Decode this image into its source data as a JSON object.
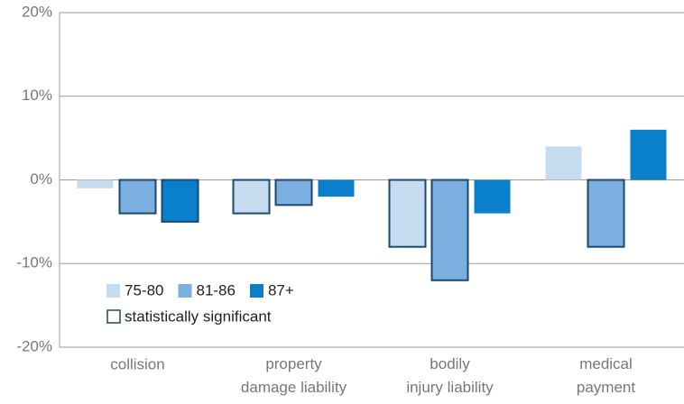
{
  "chart_data": {
    "type": "bar",
    "categories": [
      "collision",
      "property damage liability",
      "bodily injury liability",
      "medical payment"
    ],
    "series": [
      {
        "name": "75-80",
        "color": "#c6dbf0",
        "values": [
          -1,
          -4,
          -8,
          4
        ],
        "significant": [
          false,
          true,
          true,
          false
        ]
      },
      {
        "name": "81-86",
        "color": "#7bafdf",
        "values": [
          -4,
          -3,
          -12,
          -8
        ],
        "significant": [
          true,
          true,
          true,
          true
        ]
      },
      {
        "name": "87+",
        "color": "#0a7fcc",
        "values": [
          -5,
          -2,
          -4,
          6
        ],
        "significant": [
          true,
          false,
          false,
          false
        ]
      }
    ],
    "significance_label": "statistically significant",
    "significance_color": "#1b4a6e",
    "ylim": [
      -20,
      20
    ],
    "yticks": [
      {
        "value": -20,
        "label": "-20%"
      },
      {
        "value": -10,
        "label": "-10%"
      },
      {
        "value": 0,
        "label": "0%"
      },
      {
        "value": 10,
        "label": "10%"
      },
      {
        "value": 20,
        "label": "20%"
      }
    ],
    "grid": true
  }
}
